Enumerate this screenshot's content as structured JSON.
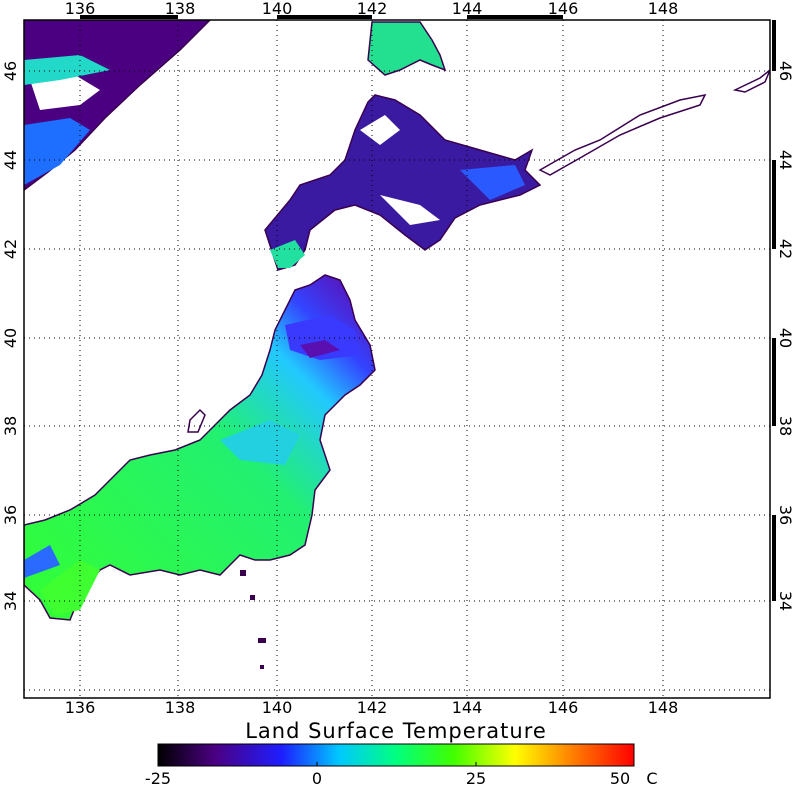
{
  "map": {
    "lon_ticks": [
      "136",
      "138",
      "140",
      "142",
      "144",
      "146",
      "148"
    ],
    "lat_ticks": [
      "34",
      "36",
      "38",
      "40",
      "42",
      "44",
      "46"
    ],
    "lon_range": [
      134.9,
      150.0
    ],
    "lat_range": [
      32.1,
      47.0
    ]
  },
  "colorbar": {
    "title": "Land Surface Temperature",
    "tick_labels": [
      "-25",
      "0",
      "25",
      "50"
    ],
    "unit": "C",
    "range": [
      -25,
      50
    ],
    "colors": [
      "#000000",
      "#4b0082",
      "#1e1eff",
      "#00c8ff",
      "#00ff80",
      "#40ff00",
      "#ffff00",
      "#ff8000",
      "#ff0000"
    ]
  }
}
